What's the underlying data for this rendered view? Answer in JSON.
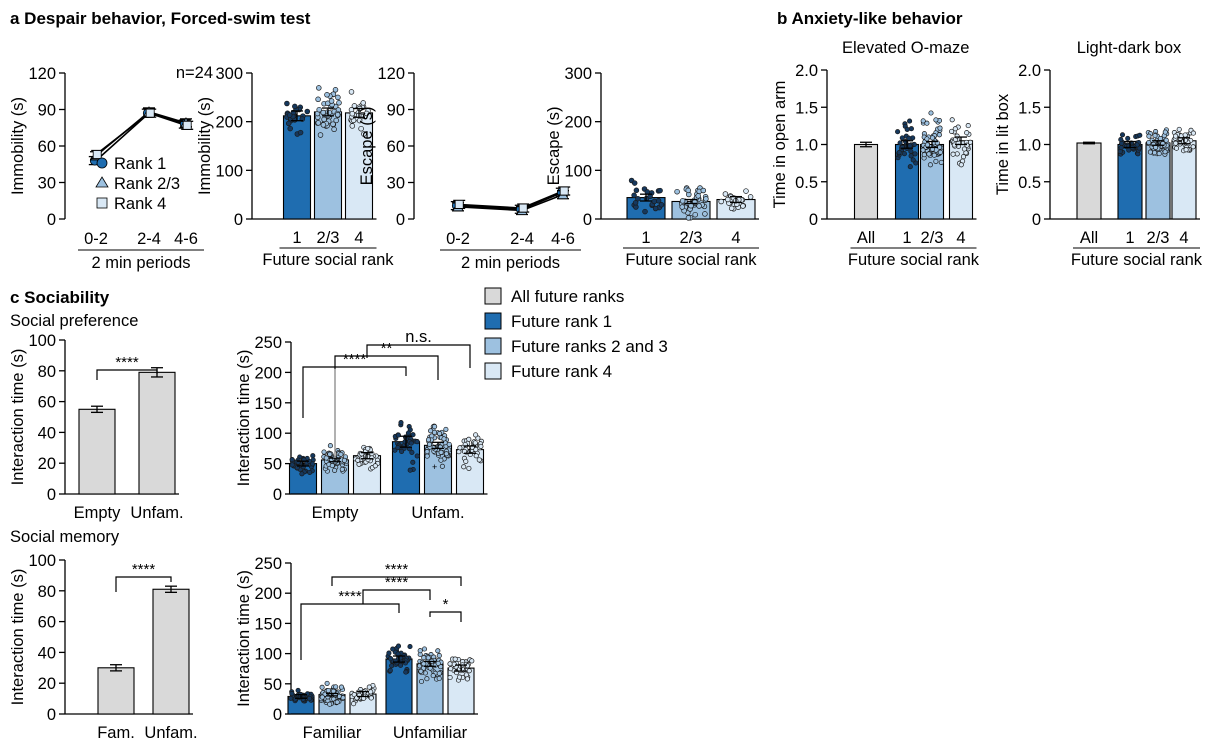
{
  "panels": {
    "a_title": "a Despair behavior, Forced-swim test",
    "b_title": "b Anxiety-like behavior",
    "c_title": "c Sociability"
  },
  "colors": {
    "all": "#d9d9d9",
    "rank1": "#1f6db0",
    "rank23": "#9dc1e0",
    "rank4": "#d9e8f5",
    "gray_line": "#a6a6a6",
    "outlier": "#d04fd0"
  },
  "legend_c": [
    "All future ranks",
    "Future rank 1",
    "Future ranks 2 and 3",
    "Future rank 4"
  ],
  "chart_data": [
    {
      "id": "a1",
      "type": "line",
      "title": "",
      "annotation": "n=24",
      "xlabel": "2 min periods",
      "ylabel": "Immobility (s)",
      "categories": [
        "0-2",
        "2-4",
        "4-6"
      ],
      "ylim": [
        0,
        120
      ],
      "yticks": [
        0,
        30,
        60,
        90,
        120
      ],
      "series": [
        {
          "name": "Rank 1",
          "marker": "circle",
          "values": [
            48,
            87,
            78
          ]
        },
        {
          "name": "Rank 2/3",
          "marker": "triangle",
          "values": [
            52,
            88,
            79
          ]
        },
        {
          "name": "Rank 4",
          "marker": "square",
          "values": [
            53,
            87,
            77
          ]
        }
      ]
    },
    {
      "id": "a2",
      "type": "bar",
      "xlabel": "Future social rank",
      "ylabel": "Immobility (s)",
      "categories": [
        "1",
        "2/3",
        "4"
      ],
      "ylim": [
        0,
        300
      ],
      "yticks": [
        0,
        100,
        200,
        300
      ],
      "values": [
        212,
        220,
        218
      ],
      "sem": [
        10,
        8,
        9
      ]
    },
    {
      "id": "a3",
      "type": "line",
      "xlabel": "2 min periods",
      "ylabel": "Escape (s)",
      "categories": [
        "0-2",
        "2-4",
        "4-6"
      ],
      "ylim": [
        0,
        120
      ],
      "yticks": [
        0,
        30,
        60,
        90,
        120
      ],
      "series": [
        {
          "name": "Rank 1",
          "marker": "circle",
          "values": [
            11,
            8,
            22
          ]
        },
        {
          "name": "Rank 2/3",
          "marker": "triangle",
          "values": [
            10,
            7,
            20
          ]
        },
        {
          "name": "Rank 4",
          "marker": "square",
          "values": [
            12,
            9,
            23
          ]
        }
      ]
    },
    {
      "id": "a4",
      "type": "bar",
      "xlabel": "Future social rank",
      "ylabel": "Escape (s)",
      "categories": [
        "1",
        "2/3",
        "4"
      ],
      "ylim": [
        0,
        300
      ],
      "yticks": [
        0,
        100,
        200,
        300
      ],
      "values": [
        44,
        36,
        40
      ],
      "sem": [
        7,
        4,
        6
      ]
    },
    {
      "id": "b1",
      "type": "bar",
      "title": "Elevated O-maze",
      "xlabel": "Future social rank",
      "ylabel": "Time in open arm",
      "categories": [
        "All",
        "1",
        "2/3",
        "4"
      ],
      "ylim": [
        0,
        2.0
      ],
      "yticks": [
        "0",
        "0.5",
        "1.0",
        "1.5",
        "2.0"
      ],
      "values": [
        1.0,
        1.0,
        1.0,
        1.05
      ],
      "sem": [
        0.03,
        0.05,
        0.04,
        0.05
      ]
    },
    {
      "id": "b2",
      "type": "bar",
      "title": "Light-dark box",
      "xlabel": "Future social rank",
      "ylabel": "Time in lit box",
      "categories": [
        "All",
        "1",
        "2/3",
        "4"
      ],
      "ylim": [
        0,
        2.0
      ],
      "yticks": [
        "0",
        "0.5",
        "1.0",
        "1.5",
        "2.0"
      ],
      "values": [
        1.02,
        1.0,
        1.02,
        1.05
      ],
      "sem": [
        0.01,
        0.04,
        0.03,
        0.04
      ]
    },
    {
      "id": "c1",
      "type": "bar",
      "title": "Social preference",
      "ylabel": "Interaction time (s)",
      "categories": [
        "Empty",
        "Unfam."
      ],
      "ylim": [
        0,
        100
      ],
      "yticks": [
        0,
        20,
        40,
        60,
        80,
        100
      ],
      "values": [
        55,
        79
      ],
      "sem": [
        2,
        3
      ],
      "annotations": [
        "****"
      ]
    },
    {
      "id": "c2",
      "type": "bar",
      "ylabel": "Interaction time (s)",
      "groups": [
        "Empty",
        "Unfam."
      ],
      "ylim": [
        0,
        250
      ],
      "yticks": [
        0,
        50,
        100,
        150,
        200,
        250
      ],
      "series": [
        {
          "name": "Future rank 1",
          "values": [
            50,
            86
          ]
        },
        {
          "name": "Future ranks 2 and 3",
          "values": [
            56,
            80
          ]
        },
        {
          "name": "Future rank 4",
          "values": [
            63,
            73
          ]
        }
      ],
      "sem": [
        [
          4,
          9
        ],
        [
          3,
          5
        ],
        [
          5,
          6
        ]
      ],
      "annotations": [
        "n.s.",
        "**",
        "****"
      ]
    },
    {
      "id": "c3",
      "type": "bar",
      "title": "Social memory",
      "ylabel": "Interaction time (s)",
      "categories": [
        "Fam.",
        "Unfam."
      ],
      "ylim": [
        0,
        100
      ],
      "yticks": [
        0,
        20,
        40,
        60,
        80,
        100
      ],
      "values": [
        30,
        81
      ],
      "sem": [
        2,
        2
      ],
      "annotations": [
        "****"
      ]
    },
    {
      "id": "c4",
      "type": "bar",
      "ylabel": "Interaction time (s)",
      "groups": [
        "Familiar",
        "Unfamiliar"
      ],
      "ylim": [
        0,
        250
      ],
      "yticks": [
        0,
        50,
        100,
        150,
        200,
        250
      ],
      "series": [
        {
          "name": "Future rank 1",
          "values": [
            29,
            91
          ]
        },
        {
          "name": "Future ranks 2 and 3",
          "values": [
            32,
            83
          ]
        },
        {
          "name": "Future rank 4",
          "values": [
            33,
            76
          ]
        }
      ],
      "sem": [
        [
          3,
          5
        ],
        [
          2,
          4
        ],
        [
          4,
          5
        ]
      ],
      "annotations": [
        "****",
        "****",
        "****",
        "*"
      ]
    }
  ]
}
